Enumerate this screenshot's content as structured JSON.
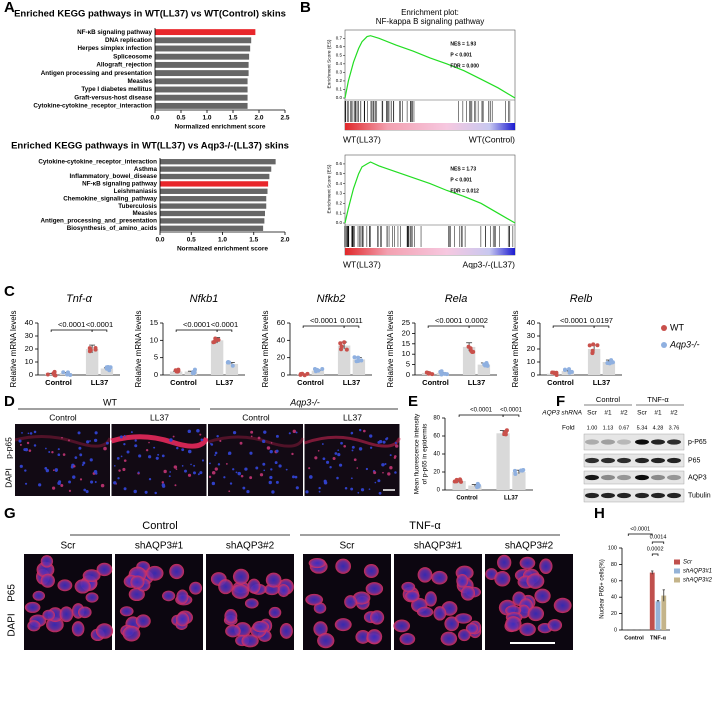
{
  "figure": {
    "panel_labels": [
      "A",
      "B",
      "C",
      "D",
      "E",
      "F",
      "G",
      "H"
    ],
    "panel_d": {
      "genotypes": [
        "WT",
        "Aqp3-/-"
      ],
      "conditions": [
        "Control",
        "LL37",
        "Control",
        "LL37"
      ],
      "stain": [
        "DAPI",
        "p-p65"
      ]
    },
    "panel_f": {
      "groups": [
        "Control",
        "TNF-α"
      ],
      "row_label": "AQP3 shRNA",
      "lanes": [
        "Scr",
        "#1",
        "#2",
        "Scr",
        "#1",
        "#2"
      ],
      "fold_label": "Fold",
      "fold": [
        "1.00",
        "1.13",
        "0.67",
        "5.34",
        "4.28",
        "3.76"
      ],
      "bands": [
        "p-P65",
        "P65",
        "AQP3",
        "Tubulin"
      ]
    },
    "panel_g": {
      "groups": [
        "Control",
        "TNF-α"
      ],
      "lanes": [
        "Scr",
        "shAQP3#1",
        "shAQP3#2",
        "Scr",
        "shAQP3#1",
        "shAQP3#2"
      ],
      "stain": [
        "DAPI",
        "P65"
      ]
    }
  },
  "chart_data": [
    {
      "type": "hbar",
      "title": "Enriched KEGG pathways in WT(LL37) vs WT(Control) skins",
      "categories": [
        "NF-κB signaling pathway",
        "DNA replication",
        "Herpes simplex infection",
        "Spliceosome",
        "Allograft_rejection",
        "Antigen processing and presentation",
        "Measles",
        "Type I diabetes mellitus",
        "Graft-versus-host disease",
        "Cytokine-cytokine_receptor_interaction"
      ],
      "values": [
        1.93,
        1.85,
        1.83,
        1.81,
        1.8,
        1.8,
        1.78,
        1.78,
        1.78,
        1.78
      ],
      "colors": [
        "#e8262b",
        "#666666",
        "#666666",
        "#666666",
        "#666666",
        "#666666",
        "#666666",
        "#666666",
        "#666666",
        "#666666"
      ],
      "xlim": [
        0,
        2.5
      ],
      "xticks": [
        {
          "value": 0,
          "label": "0.0"
        },
        0.5,
        {
          "value": 1,
          "label": "1.0"
        },
        1.5,
        {
          "value": 2,
          "label": "2.0"
        },
        2.5
      ],
      "x_label": "Normalized enrichment score"
    },
    {
      "type": "hbar",
      "title": "Enriched KEGG pathways in WT(LL37) vs Aqp3-/-(LL37) skins",
      "categories": [
        "Cytokine-cytokine_receptor_interaction",
        "Asthma",
        "Inflammatory_bowel_disease",
        "NF-κB signaling pathway",
        "Leishmaniasis",
        "Chemokine_signaling_pathway",
        "Tuberculosis",
        "Measles",
        "Antigen_processing_and_presentation",
        "Biosynthesis_of_amino_acids"
      ],
      "values": [
        1.85,
        1.78,
        1.75,
        1.73,
        1.72,
        1.7,
        1.7,
        1.68,
        1.67,
        1.65
      ],
      "colors": [
        "#666666",
        "#666666",
        "#666666",
        "#e8262b",
        "#666666",
        "#666666",
        "#666666",
        "#666666",
        "#666666",
        "#666666"
      ],
      "xlim": [
        0,
        2
      ],
      "xticks": [
        {
          "value": 0,
          "label": "0.0"
        },
        0.5,
        {
          "value": 1,
          "label": "1.0"
        },
        1.5,
        {
          "value": 2,
          "label": "2.0"
        }
      ],
      "x_label": "Normalized enrichment score"
    },
    {
      "type": "gsea",
      "title": "Enrichment plot:",
      "subtitle": "NF-kappa B signaling pathway",
      "y_label": "Enrichment Score (ES)",
      "color": "#22dd22",
      "x": [
        0,
        2,
        5,
        8,
        10,
        13,
        15,
        20,
        30,
        40,
        50,
        60,
        70,
        80,
        90,
        100
      ],
      "values": [
        0,
        0.2,
        0.42,
        0.58,
        0.66,
        0.72,
        0.73,
        0.7,
        0.62,
        0.55,
        0.47,
        0.4,
        0.32,
        0.22,
        0.12,
        0
      ],
      "xlim": [
        0,
        100
      ],
      "ylim": [
        0,
        0.75
      ],
      "yticks": [
        {
          "value": 0,
          "label": "0.0"
        },
        0.1,
        0.2,
        0.3,
        0.4,
        0.5,
        0.6,
        0.7
      ],
      "annotations": [
        "NES = 1.93",
        "P < 0.001",
        "FDR = 0.000"
      ],
      "labels": [
        "WT(LL37)",
        "WT(Control)"
      ]
    },
    {
      "type": "gsea",
      "y_label": "Enrichment Score (ES)",
      "color": "#22dd22",
      "x": [
        0,
        2,
        5,
        8,
        10,
        13,
        15,
        20,
        30,
        40,
        50,
        60,
        70,
        80,
        90,
        100
      ],
      "values": [
        0,
        0.15,
        0.35,
        0.5,
        0.57,
        0.6,
        0.62,
        0.58,
        0.52,
        0.46,
        0.4,
        0.33,
        0.27,
        0.2,
        0.1,
        0
      ],
      "xlim": [
        0,
        100
      ],
      "ylim": [
        0,
        0.65
      ],
      "yticks": [
        {
          "value": 0,
          "label": "0.0"
        },
        0.1,
        0.2,
        0.3,
        0.4,
        0.5,
        0.6
      ],
      "annotations": [
        "NES = 1.73",
        "P < 0.001",
        "FDR = 0.012"
      ],
      "labels": [
        "WT(LL37)",
        "Aqp3-/-(LL37)"
      ]
    },
    {
      "type": "bar",
      "title": "Tnf-α",
      "y_label": "Relative mRNA levels",
      "categories": [
        "Control",
        "LL37"
      ],
      "bar_color": "#d9d9d9",
      "series": [
        {
          "color": "#c9504b",
          "values": [
            1,
            20
          ],
          "errors": [
            0.3,
            3
          ]
        },
        {
          "color": "#8fb0e0",
          "values": [
            1.5,
            5
          ],
          "errors": [
            0.3,
            0.5
          ]
        }
      ],
      "ylim": [
        0,
        40
      ],
      "yticks": [
        0,
        10,
        20,
        30,
        40
      ],
      "p_values": [
        "<0.0001",
        "<0.0001"
      ]
    },
    {
      "type": "bar",
      "title": "Nfkb1",
      "y_label": "Relative mRNA levels",
      "categories": [
        "Control",
        "LL37"
      ],
      "bar_color": "#d9d9d9",
      "series": [
        {
          "color": "#c9504b",
          "values": [
            1,
            10
          ],
          "errors": [
            0.1,
            0.8
          ]
        },
        {
          "color": "#8fb0e0",
          "values": [
            1,
            3.2
          ],
          "errors": [
            0.1,
            0.4
          ]
        }
      ],
      "ylim": [
        0,
        15
      ],
      "yticks": [
        0,
        5,
        10,
        15
      ],
      "p_values": [
        "<0.0001",
        "<0.0001"
      ]
    },
    {
      "type": "bar",
      "title": "Nfkb2",
      "y_label": "Relative mRNA levels",
      "categories": [
        "Control",
        "LL37"
      ],
      "bar_color": "#d9d9d9",
      "series": [
        {
          "color": "#c9504b",
          "values": [
            1,
            34
          ],
          "errors": [
            0.3,
            4
          ]
        },
        {
          "color": "#8fb0e0",
          "values": [
            5,
            18
          ],
          "errors": [
            0.5,
            2
          ]
        }
      ],
      "ylim": [
        0,
        60
      ],
      "yticks": [
        0,
        20,
        40,
        60
      ],
      "p_values": [
        "<0.0001",
        "0.0011"
      ]
    },
    {
      "type": "bar",
      "title": "Rela",
      "y_label": "Relative mRNA levels",
      "categories": [
        "Control",
        "LL37"
      ],
      "bar_color": "#d9d9d9",
      "series": [
        {
          "color": "#c9504b",
          "values": [
            1,
            13.5
          ],
          "errors": [
            0.2,
            2
          ]
        },
        {
          "color": "#8fb0e0",
          "values": [
            1,
            5
          ],
          "errors": [
            0.2,
            0.8
          ]
        }
      ],
      "ylim": [
        0,
        25
      ],
      "yticks": [
        0,
        5,
        10,
        15,
        20,
        25
      ],
      "p_values": [
        "<0.0001",
        "0.0002"
      ]
    },
    {
      "type": "bar",
      "title": "Relb",
      "y_label": "Relative mRNA levels",
      "categories": [
        "Control",
        "LL37"
      ],
      "bar_color": "#d9d9d9",
      "series": [
        {
          "name": "WT",
          "color": "#c9504b",
          "values": [
            1,
            20
          ],
          "errors": [
            0.3,
            3
          ]
        },
        {
          "name": "Aqp3-/-",
          "color": "#8fb0e0",
          "values": [
            3,
            10
          ],
          "errors": [
            0.3,
            1.5
          ]
        }
      ],
      "ylim": [
        0,
        40
      ],
      "yticks": [
        0,
        10,
        20,
        30,
        40
      ],
      "p_values": [
        "<0.0001",
        "0.0197"
      ]
    },
    {
      "type": "bar",
      "y_label": [
        "Mean fluorescence intensity",
        "of p-p65 in epidermis"
      ],
      "categories": [
        "Control",
        "LL37"
      ],
      "bar_color": "#d9d9d9",
      "series": [
        {
          "color": "#c9504b",
          "values": [
            10,
            63
          ],
          "errors": [
            1.5,
            3
          ]
        },
        {
          "color": "#8fb0e0",
          "values": [
            5,
            20
          ],
          "errors": [
            1,
            2
          ]
        }
      ],
      "ylim": [
        0,
        80
      ],
      "yticks": [
        0,
        20,
        40,
        60,
        80
      ],
      "p_values": [
        "<0.0001",
        "<0.0001"
      ]
    },
    {
      "type": "bar",
      "y_label": "Nuclear P65+ cells(%)",
      "categories": [
        "Control",
        "TNF-α"
      ],
      "series": [
        {
          "name": "Scr",
          "color": "#c0504d",
          "values": [
            0,
            70
          ],
          "errors": [
            0,
            2
          ]
        },
        {
          "name": "shAQP3#1",
          "color": "#95b3d7",
          "values": [
            0,
            35
          ],
          "errors": [
            0,
            1
          ]
        },
        {
          "name": "shAQP3#2",
          "color": "#c4b48a",
          "values": [
            0,
            42
          ],
          "errors": [
            0,
            7
          ]
        }
      ],
      "ylim": [
        0,
        100
      ],
      "yticks": [
        0,
        20,
        40,
        60,
        80,
        100
      ],
      "p_values": [
        "<0.0001",
        "0.0014",
        "0.0002"
      ]
    }
  ]
}
